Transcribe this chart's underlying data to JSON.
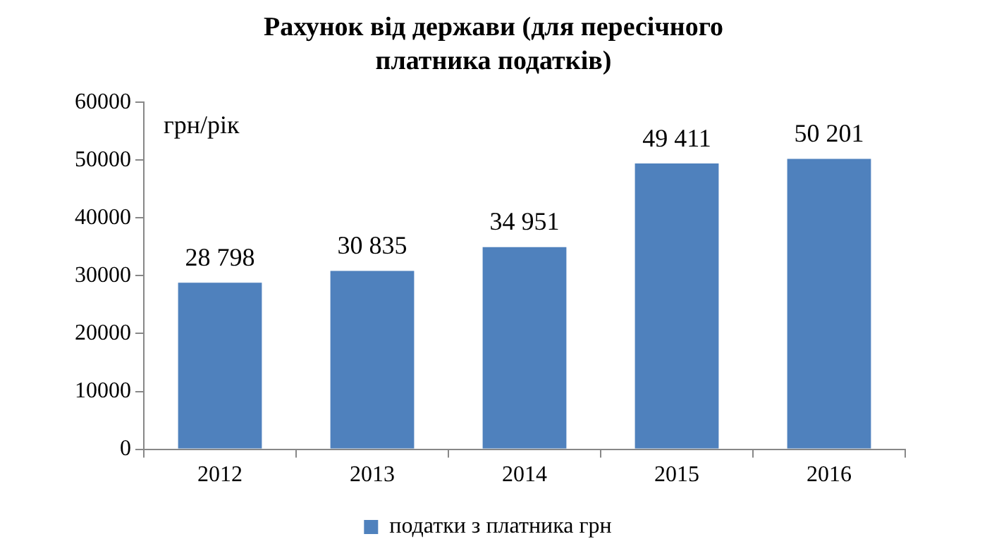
{
  "chart_data": {
    "type": "bar",
    "title": "Рахунок від держави  (для пересічного платника податків)",
    "ylabel": "грн/рік",
    "categories": [
      "2012",
      "2013",
      "2014",
      "2015",
      "2016"
    ],
    "series": [
      {
        "name": "податки з платника грн",
        "color": "#4f81bd",
        "values": [
          28798,
          30835,
          34951,
          49411,
          50201
        ],
        "value_labels": [
          "28 798",
          "30 835",
          "34 951",
          "49 411",
          "50 201"
        ]
      }
    ],
    "ylim": [
      0,
      60000
    ],
    "yticks": [
      0,
      10000,
      20000,
      30000,
      40000,
      50000,
      60000
    ],
    "grid": false,
    "legend": "bottom"
  }
}
